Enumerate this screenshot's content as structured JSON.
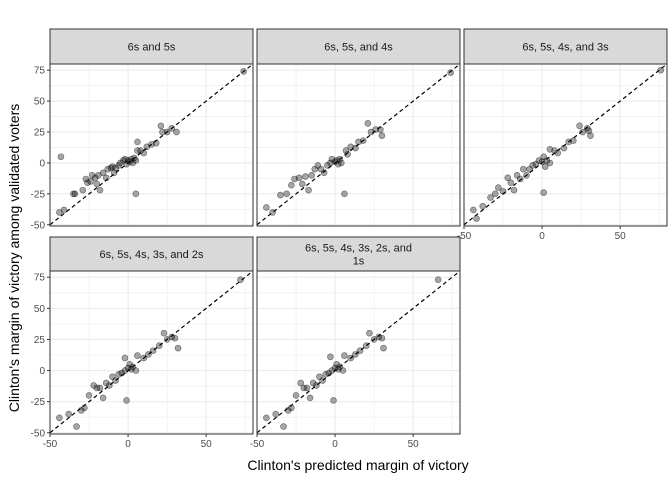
{
  "chart_data": {
    "type": "scatter",
    "xlabel": "Clinton's predicted margin of victory",
    "ylabel": "Clinton's margin of victory among validated voters",
    "xlim": [
      -50,
      80
    ],
    "ylim": [
      -51,
      80
    ],
    "x_ticks": [
      -50,
      0,
      50
    ],
    "y_ticks": [
      -50,
      -25,
      0,
      25,
      50,
      75
    ],
    "grid": true,
    "reference_line": {
      "slope": 1,
      "intercept": 0,
      "style": "dashed"
    },
    "colors": {
      "panel_border": "#333333",
      "strip_fill": "#d9d9d9",
      "grid": "#ebebeb",
      "point": "#000000"
    },
    "panels": [
      {
        "title": "6s and 5s",
        "points": [
          [
            -44,
            -40
          ],
          [
            -43,
            5
          ],
          [
            -41,
            -38
          ],
          [
            -35,
            -25
          ],
          [
            -34,
            -25
          ],
          [
            -29,
            -22
          ],
          [
            -27,
            -13
          ],
          [
            -26,
            -16
          ],
          [
            -24,
            -15
          ],
          [
            -23,
            -10
          ],
          [
            -21,
            -12
          ],
          [
            -20,
            -17
          ],
          [
            -19,
            -10
          ],
          [
            -18,
            -22
          ],
          [
            -16,
            -8
          ],
          [
            -14,
            -12
          ],
          [
            -13,
            -5
          ],
          [
            -11,
            -4
          ],
          [
            -10,
            -3
          ],
          [
            -9,
            -8
          ],
          [
            -8,
            -4
          ],
          [
            -6,
            -2
          ],
          [
            -5,
            0
          ],
          [
            -3,
            2
          ],
          [
            -2,
            3
          ],
          [
            -1,
            -1
          ],
          [
            0,
            2
          ],
          [
            1,
            1
          ],
          [
            2,
            3
          ],
          [
            3,
            0
          ],
          [
            4,
            4
          ],
          [
            5,
            2
          ],
          [
            5,
            -25
          ],
          [
            6,
            17
          ],
          [
            6,
            10
          ],
          [
            8,
            10
          ],
          [
            10,
            8
          ],
          [
            12,
            13
          ],
          [
            15,
            15
          ],
          [
            18,
            16
          ],
          [
            21,
            30
          ],
          [
            22,
            25
          ],
          [
            25,
            25
          ],
          [
            28,
            28
          ],
          [
            31,
            25
          ],
          [
            74,
            74
          ]
        ]
      },
      {
        "title": "6s, 5s, and 4s",
        "points": [
          [
            -44,
            -36
          ],
          [
            -40,
            -40
          ],
          [
            -35,
            -26
          ],
          [
            -31,
            -25
          ],
          [
            -28,
            -18
          ],
          [
            -26,
            -13
          ],
          [
            -23,
            -12
          ],
          [
            -21,
            -17
          ],
          [
            -19,
            -11
          ],
          [
            -17,
            -22
          ],
          [
            -15,
            -10
          ],
          [
            -13,
            -5
          ],
          [
            -11,
            -2
          ],
          [
            -9,
            -5
          ],
          [
            -7,
            -8
          ],
          [
            -5,
            -2
          ],
          [
            -3,
            0
          ],
          [
            -2,
            3
          ],
          [
            0,
            1
          ],
          [
            1,
            2
          ],
          [
            2,
            -1
          ],
          [
            3,
            3
          ],
          [
            4,
            0
          ],
          [
            6,
            -25
          ],
          [
            7,
            10
          ],
          [
            8,
            7
          ],
          [
            10,
            13
          ],
          [
            13,
            12
          ],
          [
            15,
            17
          ],
          [
            18,
            18
          ],
          [
            21,
            32
          ],
          [
            23,
            25
          ],
          [
            26,
            27
          ],
          [
            29,
            27
          ],
          [
            30,
            22
          ],
          [
            74,
            73
          ]
        ]
      },
      {
        "title": "6s, 5s, 4s, and 3s",
        "points": [
          [
            -44,
            -38
          ],
          [
            -42,
            -45
          ],
          [
            -38,
            -35
          ],
          [
            -33,
            -28
          ],
          [
            -30,
            -25
          ],
          [
            -28,
            -20
          ],
          [
            -25,
            -23
          ],
          [
            -22,
            -12
          ],
          [
            -20,
            -16
          ],
          [
            -18,
            -22
          ],
          [
            -16,
            -10
          ],
          [
            -14,
            -13
          ],
          [
            -12,
            -5
          ],
          [
            -10,
            -10
          ],
          [
            -8,
            -5
          ],
          [
            -6,
            -2
          ],
          [
            -4,
            -1
          ],
          [
            -2,
            2
          ],
          [
            0,
            1
          ],
          [
            1,
            5
          ],
          [
            2,
            -3
          ],
          [
            3,
            2
          ],
          [
            5,
            0
          ],
          [
            1,
            -24
          ],
          [
            5,
            11
          ],
          [
            8,
            10
          ],
          [
            10,
            8
          ],
          [
            14,
            12
          ],
          [
            17,
            17
          ],
          [
            20,
            18
          ],
          [
            24,
            30
          ],
          [
            26,
            25
          ],
          [
            29,
            28
          ],
          [
            31,
            22
          ],
          [
            30,
            26
          ],
          [
            76,
            75
          ]
        ]
      },
      {
        "title": "6s, 5s, 4s, 3s, and 2s",
        "points": [
          [
            -44,
            -38
          ],
          [
            -38,
            -35
          ],
          [
            -33,
            -45
          ],
          [
            -30,
            -32
          ],
          [
            -28,
            -30
          ],
          [
            -25,
            -20
          ],
          [
            -22,
            -12
          ],
          [
            -20,
            -14
          ],
          [
            -18,
            -14
          ],
          [
            -16,
            -22
          ],
          [
            -14,
            -10
          ],
          [
            -12,
            -12
          ],
          [
            -10,
            -5
          ],
          [
            -8,
            -8
          ],
          [
            -6,
            -3
          ],
          [
            -4,
            -2
          ],
          [
            -2,
            0
          ],
          [
            0,
            2
          ],
          [
            1,
            5
          ],
          [
            2,
            1
          ],
          [
            3,
            3
          ],
          [
            5,
            0
          ],
          [
            -1,
            -24
          ],
          [
            -2,
            10
          ],
          [
            6,
            12
          ],
          [
            10,
            10
          ],
          [
            13,
            13
          ],
          [
            16,
            16
          ],
          [
            20,
            20
          ],
          [
            23,
            30
          ],
          [
            25,
            25
          ],
          [
            28,
            27
          ],
          [
            32,
            18
          ],
          [
            30,
            26
          ],
          [
            72,
            73
          ]
        ]
      },
      {
        "title": "6s, 5s, 4s, 3s, 2s, and 1s",
        "points": [
          [
            -44,
            -38
          ],
          [
            -38,
            -35
          ],
          [
            -33,
            -45
          ],
          [
            -30,
            -32
          ],
          [
            -28,
            -30
          ],
          [
            -25,
            -20
          ],
          [
            -22,
            -10
          ],
          [
            -20,
            -14
          ],
          [
            -18,
            -14
          ],
          [
            -16,
            -22
          ],
          [
            -14,
            -10
          ],
          [
            -12,
            -12
          ],
          [
            -10,
            -5
          ],
          [
            -8,
            -8
          ],
          [
            -6,
            -3
          ],
          [
            -4,
            -2
          ],
          [
            -2,
            0
          ],
          [
            0,
            2
          ],
          [
            1,
            5
          ],
          [
            2,
            1
          ],
          [
            3,
            3
          ],
          [
            5,
            0
          ],
          [
            -1,
            -24
          ],
          [
            -3,
            11
          ],
          [
            6,
            12
          ],
          [
            10,
            10
          ],
          [
            13,
            13
          ],
          [
            16,
            16
          ],
          [
            20,
            20
          ],
          [
            22,
            30
          ],
          [
            25,
            25
          ],
          [
            28,
            27
          ],
          [
            31,
            18
          ],
          [
            30,
            26
          ],
          [
            66,
            73
          ]
        ]
      }
    ]
  }
}
